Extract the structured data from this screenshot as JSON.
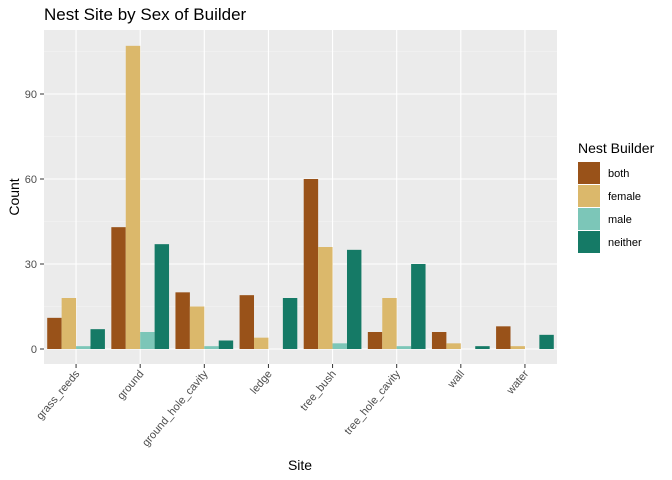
{
  "chart_data": {
    "type": "bar",
    "title": "Nest Site by Sex of Builder",
    "xlabel": "Site",
    "ylabel": "Count",
    "categories": [
      "grass_reeds",
      "ground",
      "ground_hole_cavity",
      "ledge",
      "tree_bush",
      "tree_hole_cavity",
      "wall",
      "water"
    ],
    "series": [
      {
        "name": "both",
        "color": "#995219",
        "values": [
          11,
          43,
          20,
          19,
          60,
          6,
          6,
          8
        ]
      },
      {
        "name": "female",
        "color": "#DBB86B",
        "values": [
          18,
          107,
          15,
          4,
          36,
          18,
          2,
          1
        ]
      },
      {
        "name": "male",
        "color": "#7CC6B8",
        "values": [
          1,
          6,
          1,
          0,
          2,
          1,
          0,
          0
        ]
      },
      {
        "name": "neither",
        "color": "#157A66",
        "values": [
          7,
          37,
          3,
          18,
          35,
          30,
          1,
          5
        ]
      }
    ],
    "ylim": [
      0,
      112
    ],
    "yticks": [
      0,
      30,
      60,
      90
    ],
    "grid": true,
    "legend": {
      "title": "Nest Builder",
      "position": "right"
    },
    "panel_background": "#EBEBEB"
  }
}
